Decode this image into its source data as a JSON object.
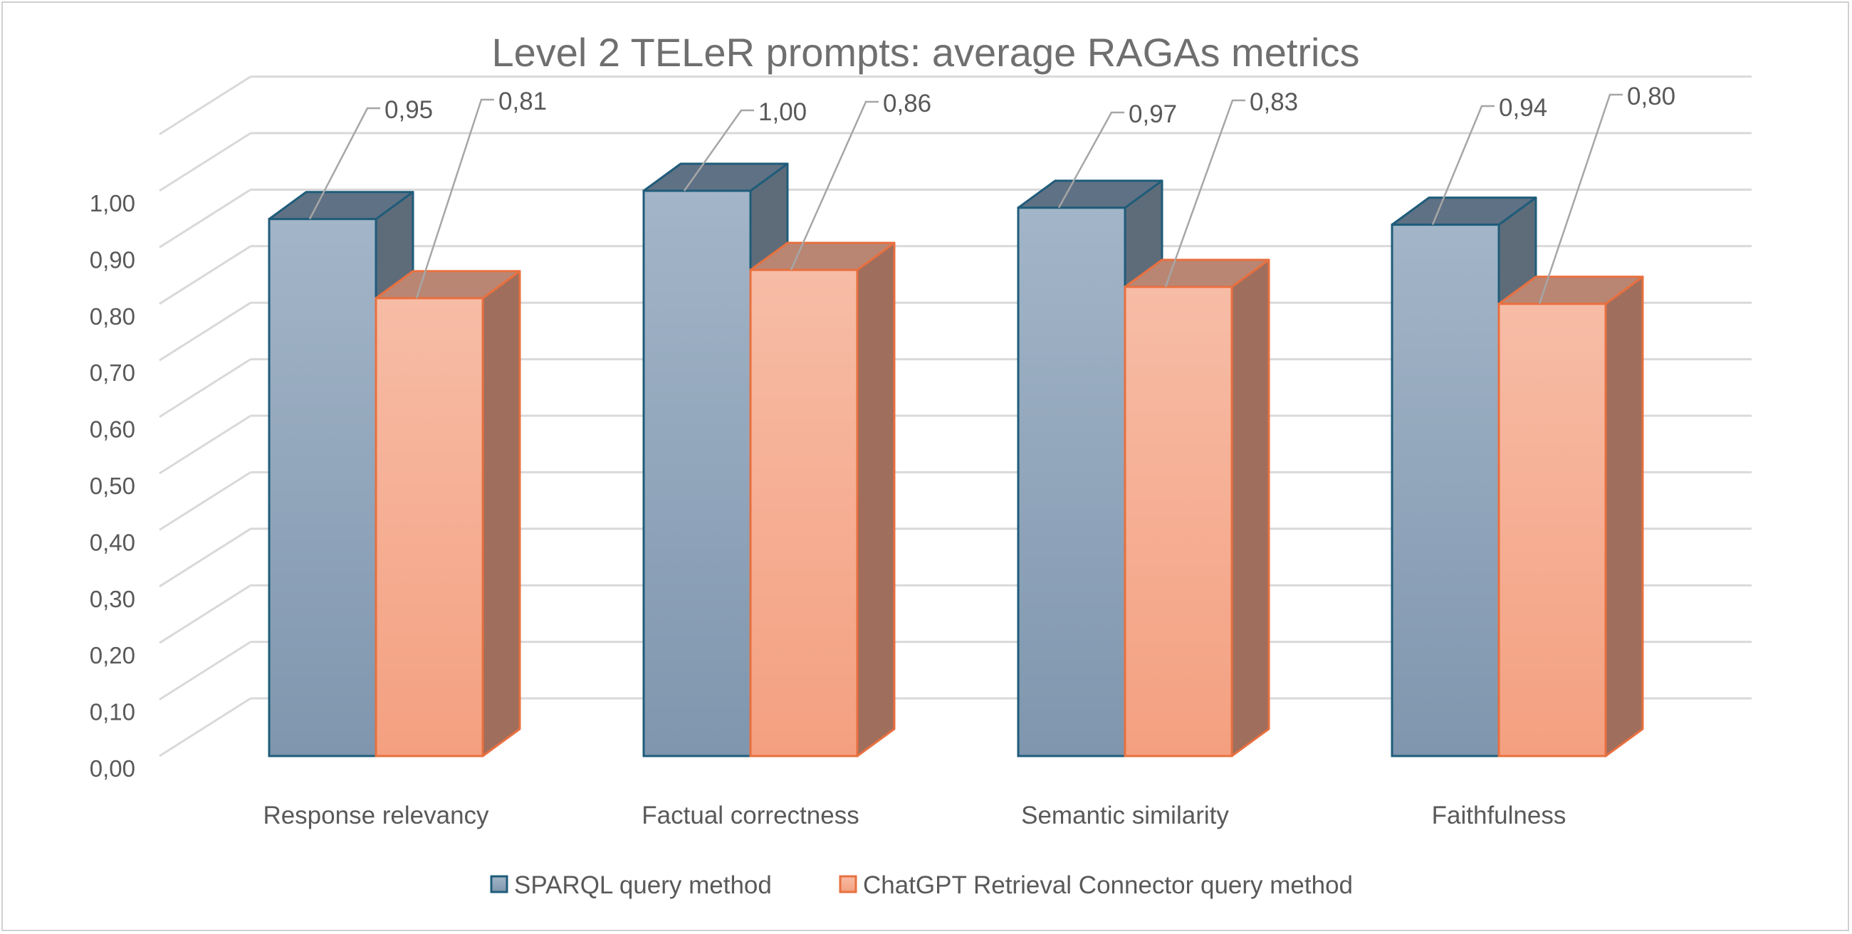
{
  "chart_data": {
    "type": "bar",
    "title": "Level 2 TELeR prompts: average RAGAs metrics",
    "categories": [
      "Response relevancy",
      "Factual correctness",
      "Semantic similarity",
      "Faithfulness"
    ],
    "series": [
      {
        "name": "SPARQL query method",
        "values": [
          0.95,
          1.0,
          0.97,
          0.94
        ],
        "labels": [
          "0,95",
          "1,00",
          "0,97",
          "0,94"
        ],
        "color": "#8aa1b8"
      },
      {
        "name": "ChatGPT Retrieval Connector query method",
        "values": [
          0.81,
          0.86,
          0.83,
          0.8
        ],
        "labels": [
          "0,81",
          "0,86",
          "0,83",
          "0,80"
        ],
        "color": "#f5ac8f"
      }
    ],
    "y_ticks": [
      "0,00",
      "0,10",
      "0,20",
      "0,30",
      "0,40",
      "0,50",
      "0,60",
      "0,70",
      "0,80",
      "0,90",
      "1,00"
    ],
    "ylim": [
      0,
      1.0
    ],
    "grid": true,
    "legend_position": "bottom",
    "style": "3d clustered column"
  }
}
